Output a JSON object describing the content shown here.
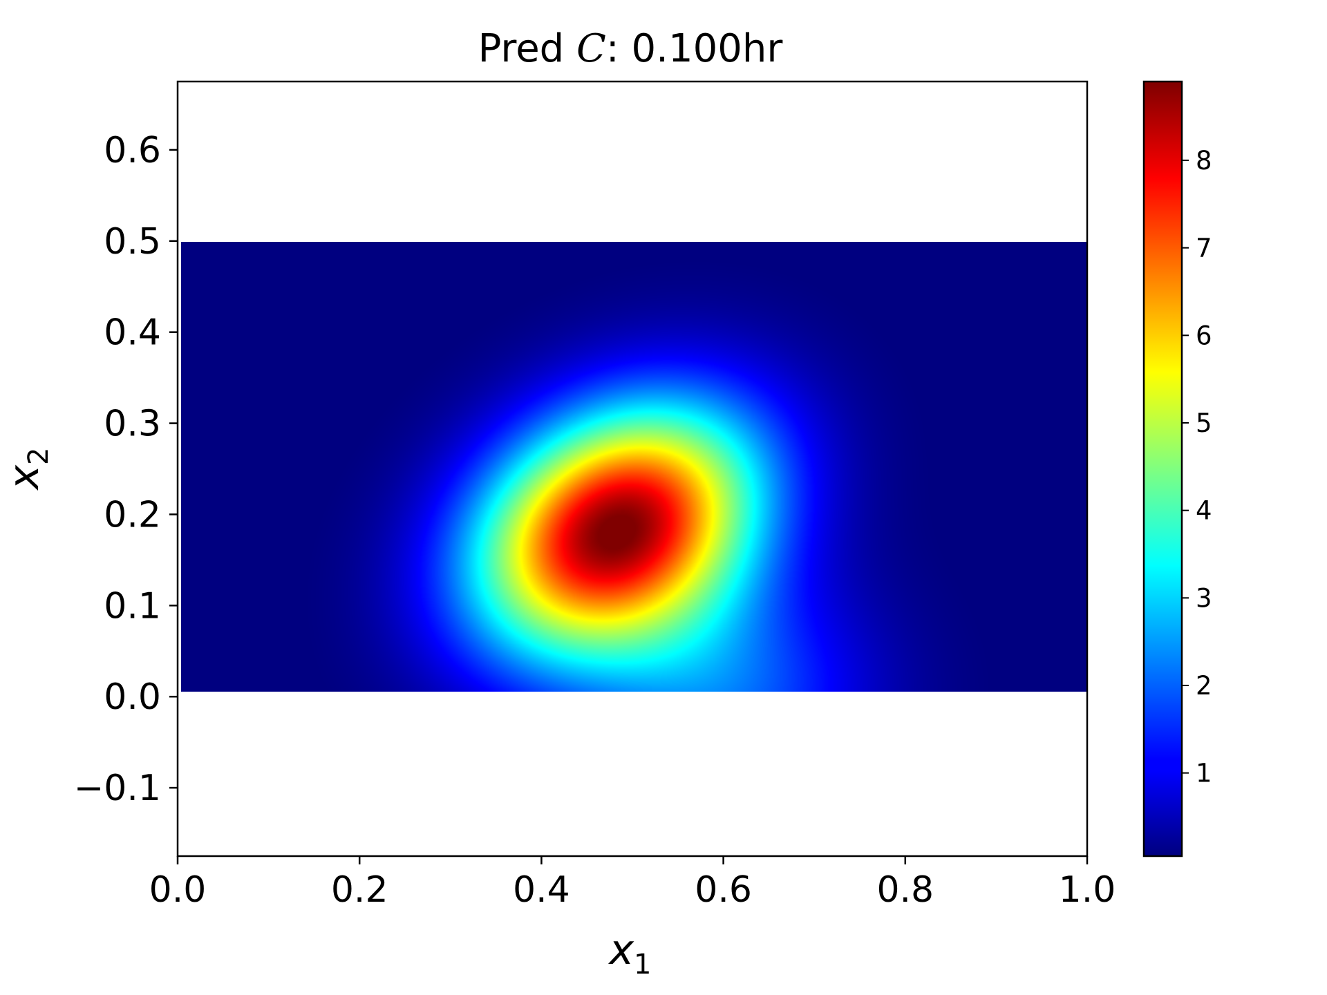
{
  "chart_data": {
    "type": "heatmap",
    "title_prefix": "Pred ",
    "title_variable": "C",
    "title_suffix": "$: 0.100hr",
    "title_display": "Pred C : 0.100hr",
    "xlabel": "x",
    "xlabel_subscript": "1",
    "ylabel": "x",
    "ylabel_subscript": "2",
    "xlim": [
      0.0,
      1.0
    ],
    "ylim": [
      -0.175,
      0.675
    ],
    "x_ticks": [
      0.0,
      0.2,
      0.4,
      0.6,
      0.8,
      1.0
    ],
    "x_tick_labels": [
      "0.0",
      "0.2",
      "0.4",
      "0.6",
      "0.8",
      "1.0"
    ],
    "y_ticks": [
      -0.1,
      0.0,
      0.1,
      0.2,
      0.3,
      0.4,
      0.5,
      0.6
    ],
    "y_tick_labels": [
      "−0.1",
      "0.0",
      "0.1",
      "0.2",
      "0.3",
      "0.4",
      "0.5",
      "0.6"
    ],
    "data_extent": {
      "x": [
        0.0,
        1.0
      ],
      "y": [
        0.0,
        0.5
      ]
    },
    "colormap": "jet",
    "color_range": [
      0.05,
      8.9
    ],
    "colorbar_ticks": [
      1,
      2,
      3,
      4,
      5,
      6,
      7,
      8
    ],
    "colorbar_tick_labels": [
      "1",
      "2",
      "3",
      "4",
      "5",
      "6",
      "7",
      "8"
    ],
    "field_peak": {
      "x": 0.48,
      "y": 0.18,
      "value": 8.9
    },
    "grid": false,
    "legend": "none"
  }
}
